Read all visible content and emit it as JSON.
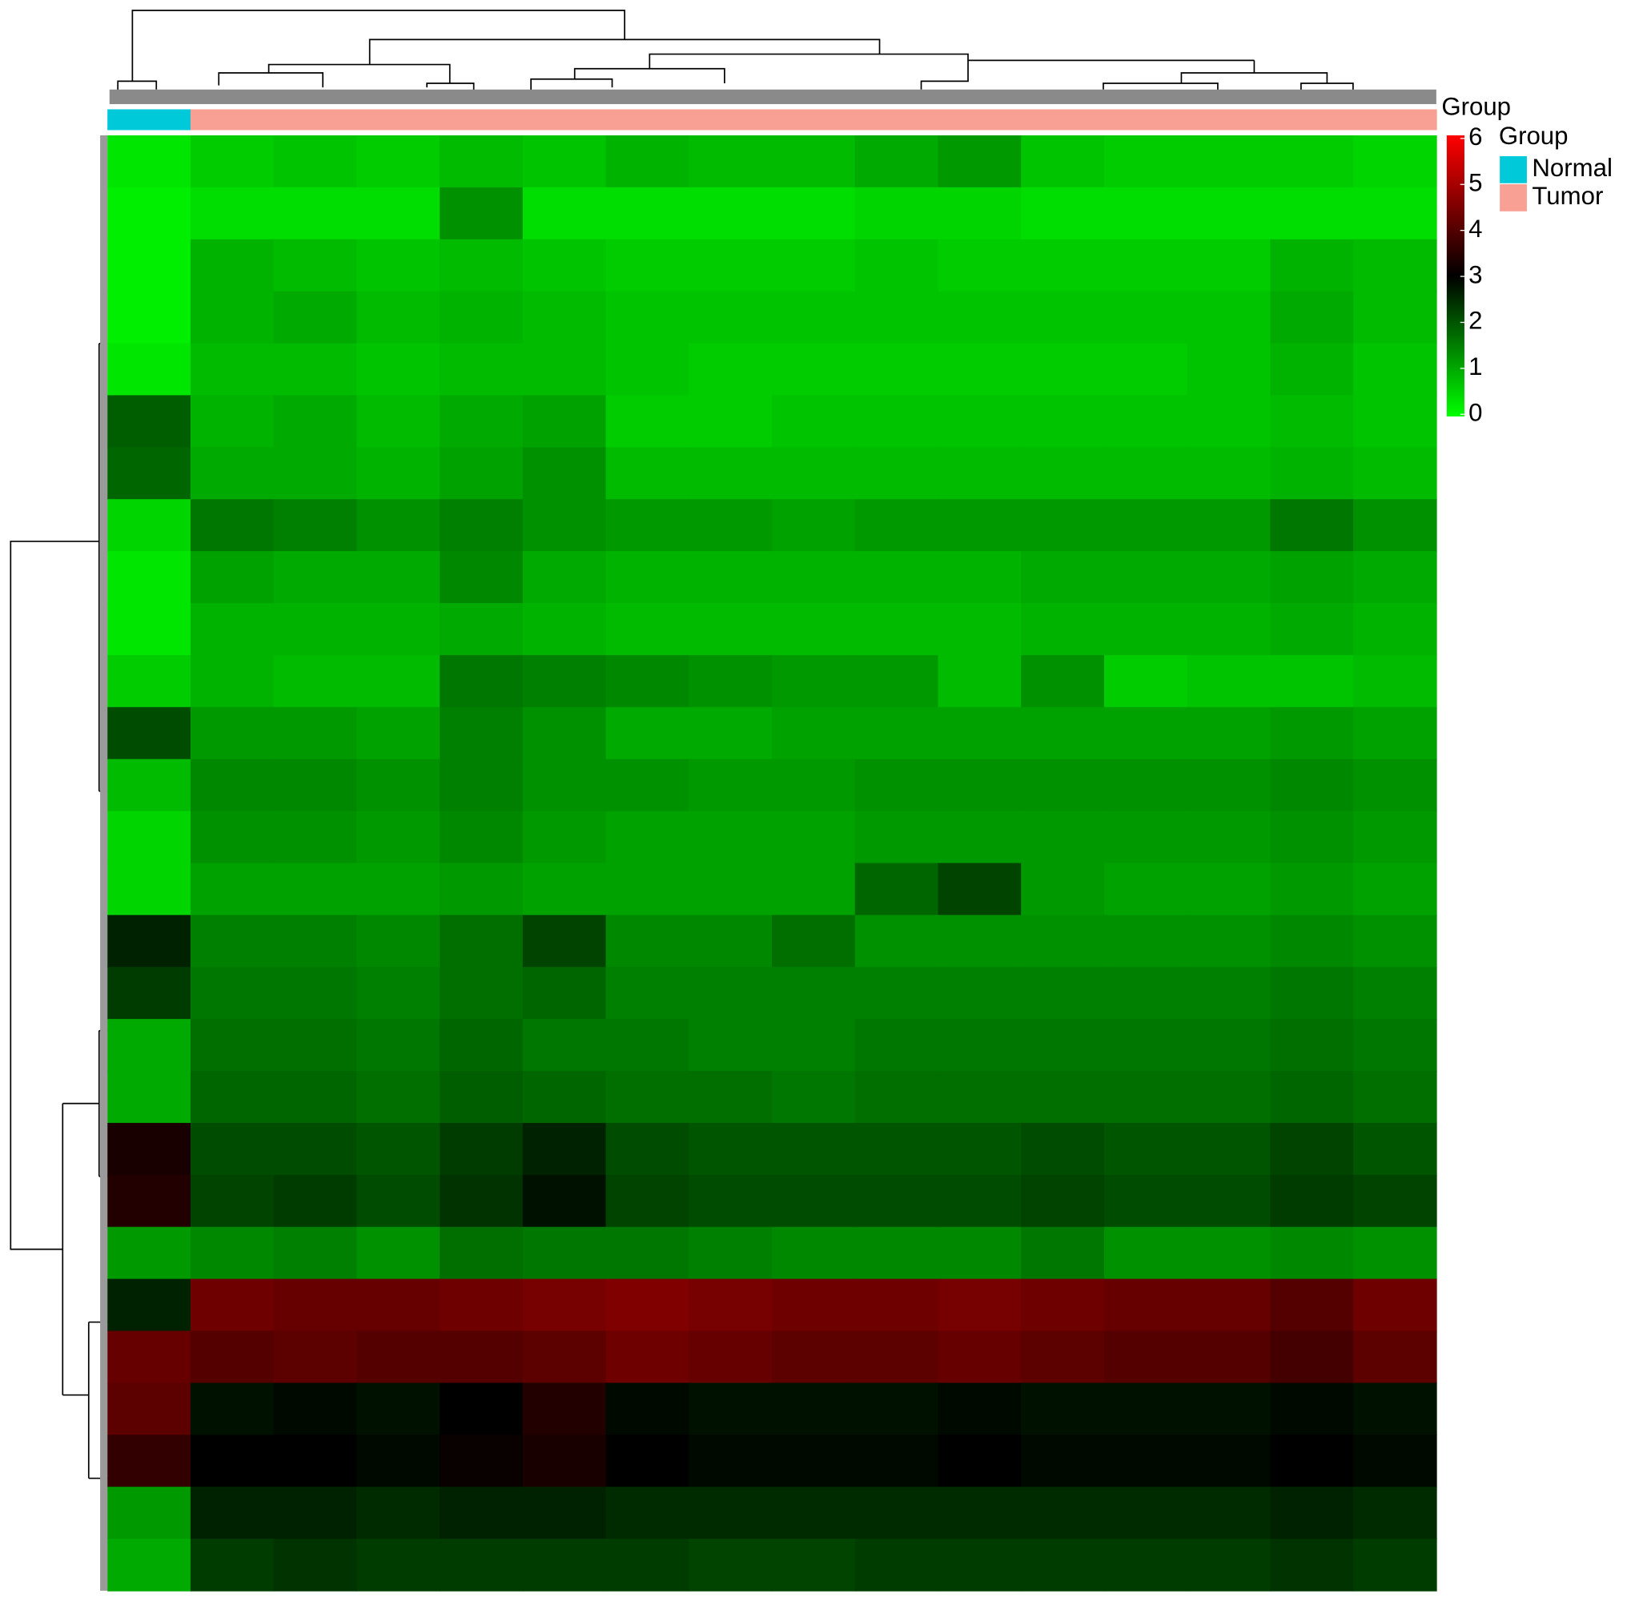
{
  "chart_data": {
    "type": "heatmap",
    "zlim": [
      0,
      6
    ],
    "zticks": [
      0,
      1,
      2,
      3,
      4,
      5,
      6
    ],
    "colorscale": [
      "#00ff00",
      "#000000",
      "#ff0000"
    ],
    "group_annotation": {
      "label": "Group",
      "values": [
        0,
        1,
        1,
        1,
        1,
        1,
        1,
        1,
        1,
        1,
        1,
        1,
        1,
        1,
        1,
        1
      ]
    },
    "legend": {
      "title": "Group",
      "items": [
        {
          "name": "Normal",
          "color": "#00c9d9"
        },
        {
          "name": "Tumor",
          "color": "#f8a093"
        }
      ]
    },
    "z": [
      [
        0.3,
        0.6,
        0.7,
        0.6,
        0.8,
        0.7,
        0.9,
        0.8,
        0.8,
        1.0,
        1.2,
        0.7,
        0.6,
        0.6,
        0.6,
        0.5
      ],
      [
        0.2,
        0.4,
        0.4,
        0.4,
        1.3,
        0.4,
        0.4,
        0.4,
        0.4,
        0.5,
        0.5,
        0.4,
        0.4,
        0.4,
        0.4,
        0.4
      ],
      [
        0.2,
        0.9,
        0.8,
        0.7,
        0.8,
        0.7,
        0.6,
        0.6,
        0.6,
        0.7,
        0.6,
        0.6,
        0.6,
        0.6,
        0.9,
        0.8
      ],
      [
        0.2,
        0.9,
        1.0,
        0.8,
        0.9,
        0.8,
        0.7,
        0.7,
        0.7,
        0.7,
        0.7,
        0.7,
        0.7,
        0.7,
        1.0,
        0.8
      ],
      [
        0.3,
        0.8,
        0.8,
        0.7,
        0.8,
        0.8,
        0.7,
        0.6,
        0.6,
        0.6,
        0.6,
        0.6,
        0.6,
        0.7,
        0.9,
        0.7
      ],
      [
        1.9,
        0.9,
        1.0,
        0.8,
        1.0,
        1.1,
        0.6,
        0.6,
        0.7,
        0.7,
        0.7,
        0.7,
        0.7,
        0.7,
        0.8,
        0.7
      ],
      [
        1.8,
        1.0,
        1.0,
        0.9,
        1.1,
        1.3,
        0.8,
        0.8,
        0.8,
        0.8,
        0.8,
        0.8,
        0.8,
        0.8,
        0.9,
        0.8
      ],
      [
        0.5,
        1.6,
        1.5,
        1.3,
        1.5,
        1.3,
        1.2,
        1.2,
        1.1,
        1.2,
        1.2,
        1.2,
        1.2,
        1.2,
        1.6,
        1.3
      ],
      [
        0.3,
        1.1,
        1.0,
        1.0,
        1.4,
        1.0,
        0.9,
        0.9,
        0.9,
        0.9,
        0.9,
        1.0,
        1.0,
        1.0,
        1.1,
        1.0
      ],
      [
        0.3,
        0.9,
        0.9,
        0.9,
        1.0,
        0.9,
        0.8,
        0.8,
        0.8,
        0.8,
        0.8,
        0.9,
        0.9,
        0.9,
        1.0,
        0.9
      ],
      [
        0.6,
        0.9,
        0.8,
        0.8,
        1.6,
        1.5,
        1.4,
        1.3,
        1.2,
        1.2,
        0.8,
        1.3,
        0.6,
        0.7,
        0.7,
        0.8
      ],
      [
        2.1,
        1.2,
        1.2,
        1.1,
        1.5,
        1.3,
        1.0,
        1.0,
        1.1,
        1.1,
        1.1,
        1.1,
        1.1,
        1.1,
        1.2,
        1.1
      ],
      [
        0.8,
        1.4,
        1.4,
        1.3,
        1.5,
        1.3,
        1.3,
        1.2,
        1.2,
        1.3,
        1.3,
        1.3,
        1.3,
        1.3,
        1.4,
        1.3
      ],
      [
        0.5,
        1.3,
        1.3,
        1.2,
        1.4,
        1.2,
        1.1,
        1.1,
        1.1,
        1.2,
        1.2,
        1.2,
        1.2,
        1.2,
        1.3,
        1.2
      ],
      [
        0.5,
        1.1,
        1.1,
        1.1,
        1.2,
        1.1,
        1.1,
        1.1,
        1.1,
        1.8,
        2.2,
        1.2,
        1.1,
        1.1,
        1.2,
        1.1
      ],
      [
        2.6,
        1.5,
        1.5,
        1.4,
        1.7,
        2.2,
        1.4,
        1.4,
        1.7,
        1.3,
        1.3,
        1.3,
        1.3,
        1.3,
        1.4,
        1.3
      ],
      [
        2.3,
        1.6,
        1.6,
        1.5,
        1.7,
        1.8,
        1.5,
        1.5,
        1.5,
        1.5,
        1.5,
        1.5,
        1.5,
        1.5,
        1.6,
        1.5
      ],
      [
        1.0,
        1.7,
        1.7,
        1.6,
        1.8,
        1.6,
        1.6,
        1.5,
        1.5,
        1.6,
        1.6,
        1.6,
        1.6,
        1.6,
        1.7,
        1.6
      ],
      [
        1.0,
        1.8,
        1.8,
        1.7,
        1.9,
        1.8,
        1.7,
        1.7,
        1.6,
        1.7,
        1.7,
        1.7,
        1.7,
        1.7,
        1.8,
        1.7
      ],
      [
        3.3,
        2.1,
        2.1,
        2.0,
        2.3,
        2.6,
        2.1,
        2.0,
        2.0,
        2.0,
        2.0,
        2.1,
        2.0,
        2.0,
        2.2,
        2.0
      ],
      [
        3.4,
        2.2,
        2.3,
        2.1,
        2.4,
        2.8,
        2.2,
        2.1,
        2.1,
        2.1,
        2.1,
        2.2,
        2.1,
        2.1,
        2.3,
        2.2
      ],
      [
        1.2,
        1.4,
        1.5,
        1.3,
        1.7,
        1.6,
        1.6,
        1.5,
        1.4,
        1.4,
        1.4,
        1.6,
        1.3,
        1.3,
        1.4,
        1.3
      ],
      [
        2.6,
        4.3,
        4.2,
        4.2,
        4.3,
        4.4,
        4.5,
        4.4,
        4.3,
        4.3,
        4.4,
        4.3,
        4.2,
        4.2,
        4.0,
        4.3
      ],
      [
        4.2,
        4.0,
        4.1,
        4.0,
        4.0,
        4.1,
        4.3,
        4.2,
        4.1,
        4.1,
        4.2,
        4.1,
        4.0,
        4.0,
        3.8,
        4.1
      ],
      [
        4.1,
        2.8,
        2.9,
        2.8,
        3.0,
        3.4,
        2.9,
        2.8,
        2.8,
        2.8,
        2.9,
        2.8,
        2.8,
        2.8,
        2.9,
        2.8
      ],
      [
        3.6,
        3.0,
        3.0,
        2.9,
        3.1,
        3.3,
        3.0,
        2.9,
        2.9,
        2.9,
        3.0,
        2.9,
        2.9,
        2.9,
        3.0,
        2.9
      ],
      [
        1.2,
        2.6,
        2.6,
        2.5,
        2.6,
        2.6,
        2.5,
        2.5,
        2.5,
        2.5,
        2.5,
        2.5,
        2.5,
        2.5,
        2.6,
        2.5
      ],
      [
        1.0,
        2.3,
        2.4,
        2.3,
        2.3,
        2.3,
        2.3,
        2.2,
        2.2,
        2.3,
        2.3,
        2.3,
        2.3,
        2.3,
        2.4,
        2.3
      ]
    ]
  }
}
